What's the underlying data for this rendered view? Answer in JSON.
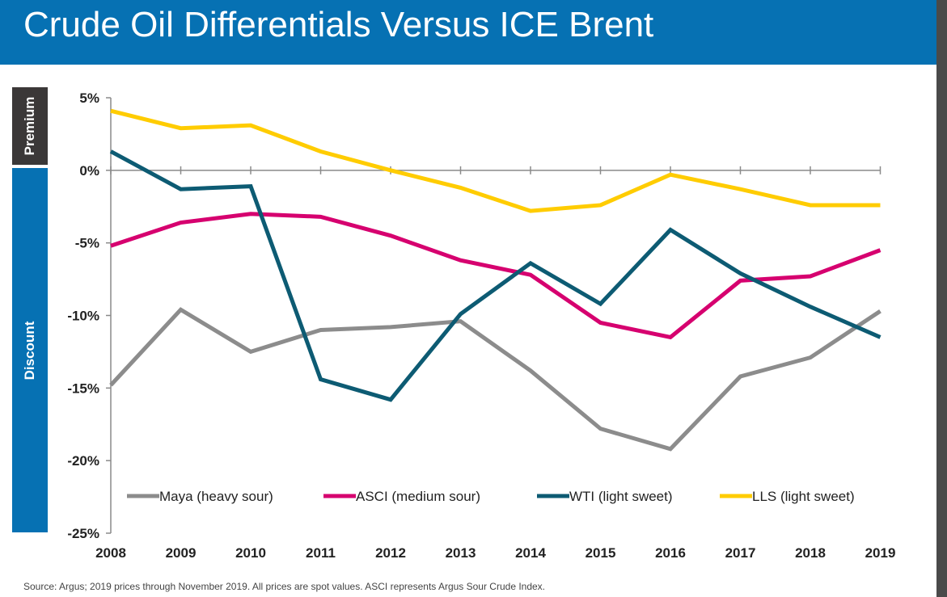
{
  "header": {
    "title": "Crude Oil Differentials Versus ICE Brent"
  },
  "bands": {
    "premium": "Premium",
    "discount": "Discount"
  },
  "footer": {
    "source": "Source: Argus; 2019 prices through November 2019. All prices are spot values. ASCI represents Argus Sour Crude Index."
  },
  "colors": {
    "title_bar": "#0671b3",
    "premium_band": "#3b3838",
    "discount_band": "#0671b3"
  },
  "chart_data": {
    "type": "line",
    "title": "Crude Oil Differentials Versus ICE Brent",
    "xlabel": "",
    "ylabel": "",
    "x": [
      "2008",
      "2009",
      "2010",
      "2011",
      "2012",
      "2013",
      "2014",
      "2015",
      "2016",
      "2017",
      "2018",
      "2019"
    ],
    "yticks": [
      "5%",
      "0%",
      "-5%",
      "-10%",
      "-15%",
      "-20%",
      "-25%"
    ],
    "ylim": [
      -25,
      5
    ],
    "grid": false,
    "legend_position": "bottom",
    "series": [
      {
        "name": "Maya (heavy sour)",
        "color": "#8c8c8c",
        "values": [
          -14.8,
          -9.6,
          -12.5,
          -11.0,
          -10.8,
          -10.4,
          -13.8,
          -17.8,
          -19.2,
          -14.2,
          -12.9,
          -9.7
        ]
      },
      {
        "name": "ASCI (medium sour)",
        "color": "#d6006f",
        "values": [
          -5.2,
          -3.6,
          -3.0,
          -3.2,
          -4.5,
          -6.2,
          -7.2,
          -10.5,
          -11.5,
          -7.6,
          -7.3,
          -5.5
        ]
      },
      {
        "name": "WTI (light sweet)",
        "color": "#0d5b73",
        "values": [
          1.3,
          -1.3,
          -1.1,
          -14.4,
          -15.8,
          -9.9,
          -6.4,
          -9.2,
          -4.1,
          -7.1,
          -9.4,
          -11.5
        ]
      },
      {
        "name": "LLS (light sweet)",
        "color": "#ffcc00",
        "values": [
          4.1,
          2.9,
          3.1,
          1.3,
          0.0,
          -1.2,
          -2.8,
          -2.4,
          -0.3,
          -1.3,
          -2.4,
          -2.4
        ]
      }
    ]
  }
}
